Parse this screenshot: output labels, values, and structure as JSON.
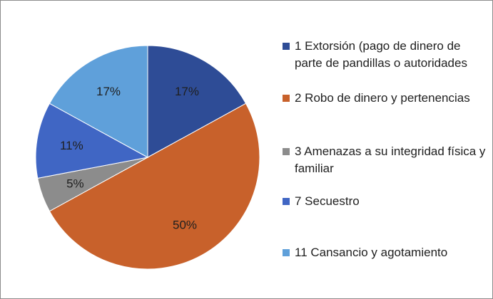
{
  "chart_data": {
    "type": "pie",
    "title": "",
    "legend_position": "right",
    "slices": [
      {
        "label": "1 Extorsión (pago de dinero de parte de pandillas o autoridades",
        "value": 17,
        "display": "17%",
        "color": "#2E4C96"
      },
      {
        "label": "2 Robo de dinero y pertenencias",
        "value": 50,
        "display": "50%",
        "color": "#C8612B"
      },
      {
        "label": "3 Amenazas a su integridad física y familiar",
        "value": 5,
        "display": "5%",
        "color": "#8C8C8C"
      },
      {
        "label": "7 Secuestro",
        "value": 11,
        "display": "11%",
        "color": "#4066C4"
      },
      {
        "label": "11 Cansancio y agotamiento",
        "value": 17,
        "display": "17%",
        "color": "#5FA0DA"
      }
    ]
  }
}
